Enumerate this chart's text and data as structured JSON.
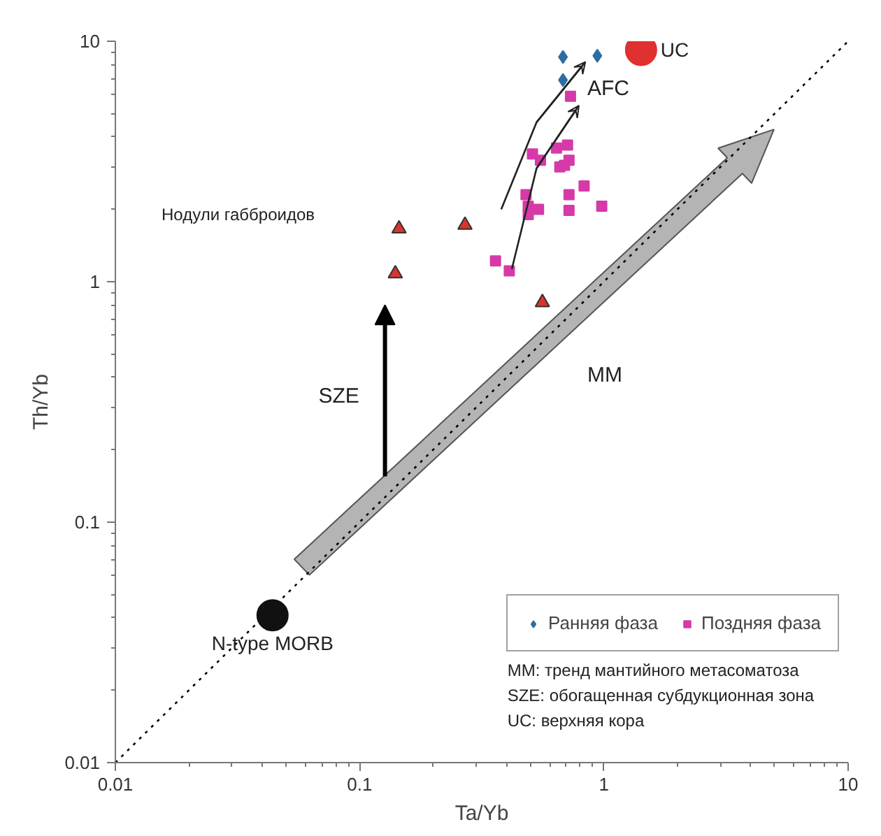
{
  "chart_data": {
    "type": "scatter",
    "xlabel": "Ta/Yb",
    "ylabel": "Th/Yb",
    "log": "xy",
    "xlim": [
      0.01,
      10
    ],
    "ylim": [
      0.01,
      10
    ],
    "xticks": [
      0.01,
      0.1,
      1,
      10
    ],
    "yticks": [
      0.01,
      0.1,
      1,
      10
    ],
    "grid": false,
    "legend": "bottom right",
    "series": [
      {
        "type": "line",
        "color": "#000000",
        "line_style": "dotted",
        "marker": "none",
        "x": [
          0.01,
          10
        ],
        "values": [
          0.01,
          10
        ]
      },
      {
        "name": "Ранняя фаза",
        "color": "#2e6da4",
        "marker": "diamond",
        "x": [
          0.68,
          0.94,
          0.68
        ],
        "values": [
          8.6,
          8.7,
          6.9
        ]
      },
      {
        "name": "Поздняя фаза",
        "color": "#d63aa8",
        "marker": "square",
        "x": [
          0.73,
          0.51,
          0.55,
          0.64,
          0.71,
          0.66,
          0.72,
          0.69,
          0.83,
          0.72,
          0.72,
          0.98,
          0.48,
          0.49,
          0.54,
          0.49,
          0.36,
          0.41
        ],
        "values": [
          5.9,
          3.4,
          3.2,
          3.6,
          3.7,
          3.0,
          3.2,
          3.05,
          2.5,
          2.3,
          1.98,
          2.06,
          2.3,
          2.06,
          2.0,
          1.9,
          1.22,
          1.11
        ]
      },
      {
        "type": "line",
        "color": "#222222",
        "line_style": "solid",
        "marker": "none",
        "x": [
          0.38,
          0.53,
          0.84
        ],
        "values": [
          2.0,
          4.6,
          8.2
        ]
      },
      {
        "type": "line",
        "color": "#222222",
        "line_style": "solid",
        "marker": "none",
        "x": [
          0.42,
          0.53,
          0.79
        ],
        "values": [
          1.13,
          2.96,
          5.4
        ]
      },
      {
        "color": "#d9342b",
        "marker": "triangle",
        "x": [
          0.145,
          0.27,
          0.14,
          0.56
        ],
        "values": [
          1.66,
          1.72,
          1.08,
          0.82
        ]
      },
      {
        "name": "UC",
        "color": "#e03030",
        "marker": "circle",
        "x": [
          1.42
        ],
        "values": [
          9.2
        ]
      },
      {
        "name": "N-type MORB",
        "color": "#111111",
        "marker": "circle",
        "x": [
          0.044
        ],
        "values": [
          0.041
        ]
      }
    ],
    "annotations": [
      "Нодули габброидов",
      "SZE",
      "MM",
      {
        "text": "AFC",
        "x": 0.79,
        "y": 5.4
      },
      "MM: тренд мантийного метасоматоза",
      "SZE: обогащенная субдукционная зона",
      "UC: верхняя кора"
    ]
  }
}
